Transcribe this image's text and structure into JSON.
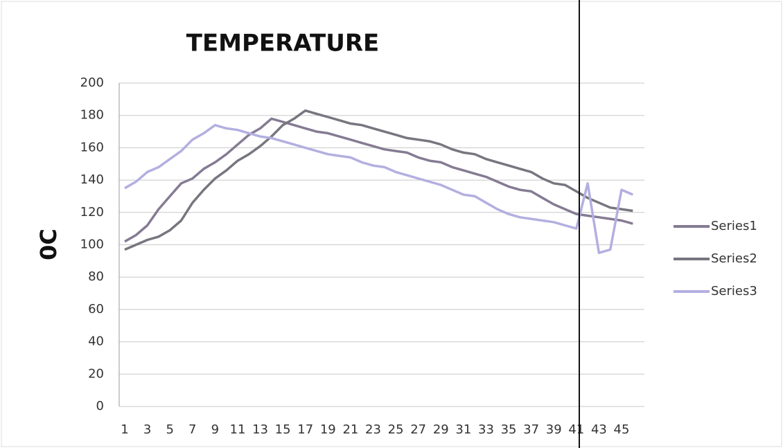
{
  "chart_data": {
    "type": "line",
    "title": "TEMPERATURE",
    "y_label": "0C",
    "categories": [
      "1",
      null,
      "3",
      null,
      "5",
      null,
      "7",
      null,
      "9",
      null,
      "11",
      null,
      "13",
      null,
      "15",
      null,
      "17",
      null,
      "19",
      null,
      "21",
      null,
      "23",
      null,
      "25",
      null,
      "27",
      null,
      "29",
      null,
      "31",
      null,
      "33",
      null,
      "35",
      null,
      "37",
      null,
      "39",
      null,
      "41",
      null,
      "43",
      null,
      "45",
      null
    ],
    "series": [
      {
        "name": "Series1",
        "color": "#857b93",
        "values": [
          102,
          106,
          112,
          122,
          130,
          138,
          141,
          147,
          151,
          156,
          162,
          168,
          172,
          178,
          176,
          174,
          172,
          170,
          169,
          167,
          165,
          163,
          161,
          159,
          158,
          157,
          154,
          152,
          151,
          148,
          146,
          144,
          142,
          139,
          136,
          134,
          133,
          129,
          125,
          122,
          119,
          118,
          117,
          116,
          115,
          113
        ]
      },
      {
        "name": "Series2",
        "color": "#77767f",
        "values": [
          97,
          100,
          103,
          105,
          109,
          115,
          126,
          134,
          141,
          146,
          152,
          156,
          161,
          167,
          174,
          178,
          183,
          181,
          179,
          177,
          175,
          174,
          172,
          170,
          168,
          166,
          165,
          164,
          162,
          159,
          157,
          156,
          153,
          151,
          149,
          147,
          145,
          141,
          138,
          137,
          133,
          129,
          126,
          123,
          122,
          121
        ]
      },
      {
        "name": "Series3",
        "color": "#b3afe0",
        "values": [
          135,
          139,
          145,
          148,
          153,
          158,
          165,
          169,
          174,
          172,
          171,
          169,
          167,
          166,
          164,
          162,
          160,
          158,
          156,
          155,
          154,
          151,
          149,
          148,
          145,
          143,
          141,
          139,
          137,
          134,
          131,
          130,
          126,
          122,
          119,
          117,
          116,
          115,
          114,
          112,
          110,
          138,
          95,
          97,
          134,
          131
        ]
      }
    ],
    "ylim": [
      0,
      200
    ],
    "yticks": [
      0,
      20,
      40,
      60,
      80,
      100,
      120,
      140,
      160,
      180,
      200
    ],
    "grid": true,
    "legend": "right"
  }
}
